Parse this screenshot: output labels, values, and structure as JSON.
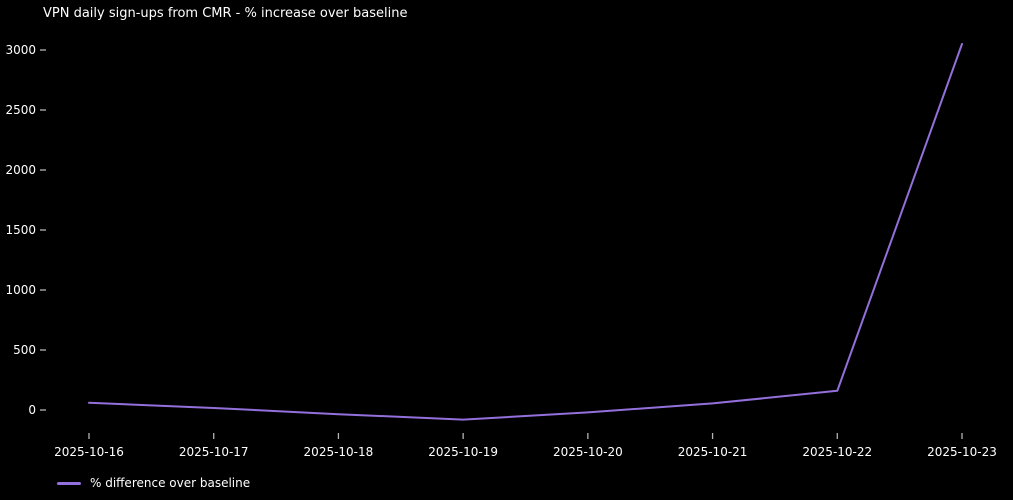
{
  "title": "VPN daily sign-ups from CMR - % increase over baseline",
  "legend": {
    "label": "% difference over baseline"
  },
  "colors": {
    "background": "#000000",
    "text": "#ffffff",
    "tick": "#b3b3b3",
    "line": "#9370db"
  },
  "chart_data": {
    "type": "line",
    "title": "VPN daily sign-ups from CMR - % increase over baseline",
    "x": [
      "2025-10-16",
      "2025-10-17",
      "2025-10-18",
      "2025-10-19",
      "2025-10-20",
      "2025-10-21",
      "2025-10-22",
      "2025-10-23"
    ],
    "series": [
      {
        "name": "% difference over baseline",
        "color": "#9370db",
        "values": [
          60,
          17,
          -35,
          -80,
          -20,
          55,
          160,
          3050
        ]
      }
    ],
    "xlabel": "",
    "ylabel": "",
    "y_ticks": [
      0,
      500,
      1000,
      1500,
      2000,
      2500,
      3000
    ],
    "ylim": [
      -180,
      3120
    ],
    "grid": false,
    "axis_spines": false,
    "legend_position": "lower-left"
  }
}
